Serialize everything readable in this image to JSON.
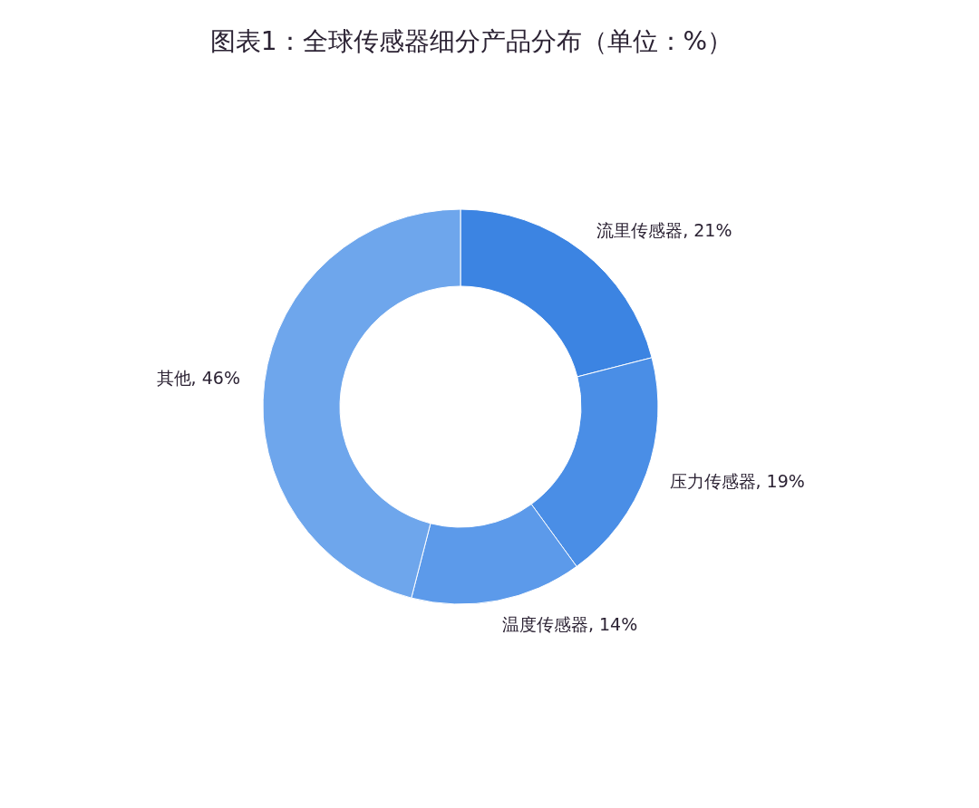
{
  "chart_data": {
    "type": "donut",
    "title": "图表1：全球传感器细分产品分布（单位：%）",
    "categories": [
      "流里传感器",
      "压力传感器",
      "温度传感器",
      "其他"
    ],
    "values": [
      21,
      19,
      14,
      46
    ],
    "colors": [
      "#3c84e2",
      "#4a8ee6",
      "#5c9aea",
      "#6ea6ec"
    ],
    "value_labels": [
      "21%",
      "19%",
      "14%",
      "46%"
    ]
  }
}
